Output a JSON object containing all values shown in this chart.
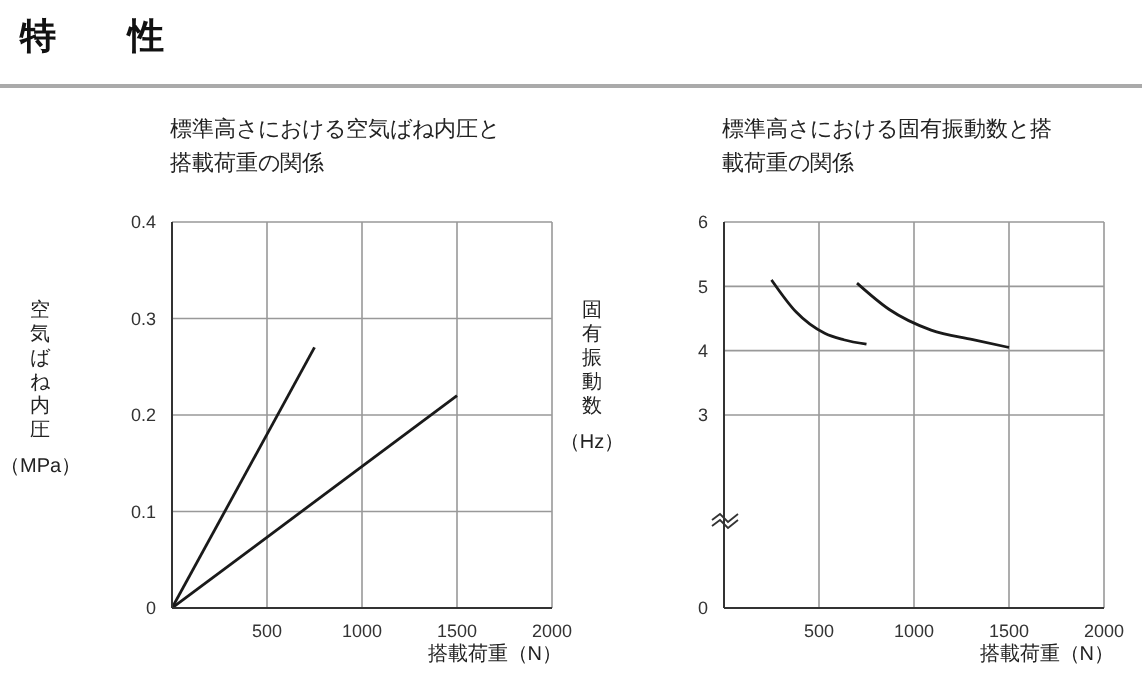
{
  "chart_data": [
    {
      "type": "line",
      "title": "標準高さにおける空気ばね内圧と搭載荷重の関係",
      "annotations": [
        "特　　性"
      ],
      "xlabel": "搭載荷重（N）",
      "ylabel": "空気ばね内圧（MPa）",
      "xlim": [
        0,
        2000
      ],
      "xticks": [
        {
          "value": 0,
          "label": null
        },
        500,
        1000,
        1500,
        2000
      ],
      "ylim": [
        0,
        0.4
      ],
      "yticks": [
        0,
        0.1,
        0.2,
        0.3,
        0.4
      ],
      "grid": true,
      "marker": "none",
      "line_style": "solid",
      "series": [
        {
          "color": "#1a1a1a",
          "x": [
            0,
            750
          ],
          "values": [
            0,
            0.27
          ]
        },
        {
          "color": "#1a1a1a",
          "x": [
            0,
            1500
          ],
          "values": [
            0,
            0.22
          ]
        }
      ]
    },
    {
      "type": "line",
      "title": "標準高さにおける固有振動数と搭載荷重の関係",
      "xlabel": "搭載荷重（N）",
      "ylabel": "固有振動数（Hz）",
      "xlim": [
        0,
        2000
      ],
      "xticks": [
        {
          "value": 0,
          "label": null
        },
        500,
        1000,
        1500,
        2000
      ],
      "ylim": [
        0,
        6
      ],
      "yticks": [
        0,
        3,
        4,
        5,
        6
      ],
      "grid": true,
      "marker": "none",
      "line_style": "solid",
      "series": [
        {
          "color": "#1a1a1a",
          "x": [
            250,
            380,
            530,
            630,
            750
          ],
          "values": [
            5.1,
            4.6,
            4.27,
            4.17,
            4.1
          ]
        },
        {
          "color": "#1a1a1a",
          "x": [
            700,
            870,
            1090,
            1310,
            1500
          ],
          "values": [
            5.05,
            4.64,
            4.32,
            4.17,
            4.05
          ]
        }
      ]
    }
  ]
}
